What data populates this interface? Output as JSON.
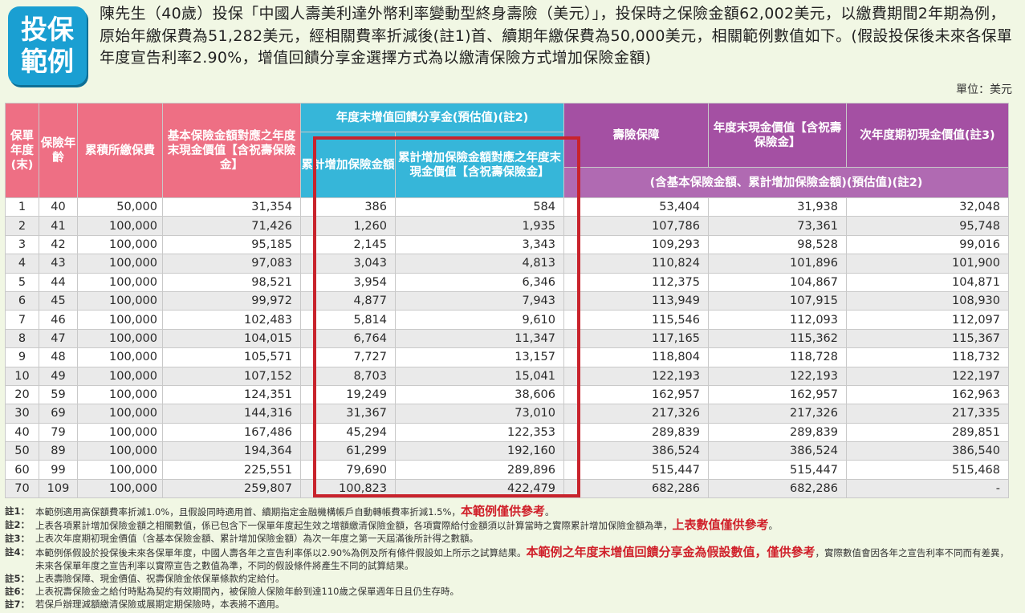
{
  "badge": {
    "line1": "投保",
    "line2": "範例"
  },
  "intro": "陳先生（40歲）投保「中國人壽美利達外幣利率變動型終身壽險（美元）」，投保時之保險金額62,002美元，以繳費期間2年期為例，原始年繳保費為51,282美元，經相關費率折減後(註1)首、續期年繳保費為50,000美元，相關範例數值如下。(假設投保後未來各保單年度宣告利率2.90%，增值回饋分享金選擇方式為以繳清保險方式增加保險金額)",
  "unit": "單位：美元",
  "headers": {
    "policy_year": "保單年度(末)",
    "age": "保險年齡",
    "cum_premium": "累積所繳保費",
    "base_cash_value": "基本保險金額對應之年度末現金價值【含祝壽保險金】",
    "dividend_group": "年度末增值回饋分享金(預估值)(註2)",
    "cum_added_amount": "累計增加保險金額",
    "cum_added_cash_value": "累計增加保險金額對應之年度末現金價值【含祝壽保險金】",
    "death_benefit": "壽險保障",
    "year_end_cash_value": "年度末現金價值【含祝壽保險金】",
    "next_year_cash_value": "次年度期初現金價值(註3)",
    "purple_sub": "(含基本保險金額、累計增加保險金額)(預估值)(註2)"
  },
  "rows": [
    [
      "1",
      "40",
      "50,000",
      "31,354",
      "386",
      "584",
      "53,404",
      "31,938",
      "32,048"
    ],
    [
      "2",
      "41",
      "100,000",
      "71,426",
      "1,260",
      "1,935",
      "107,786",
      "73,361",
      "95,748"
    ],
    [
      "3",
      "42",
      "100,000",
      "95,185",
      "2,145",
      "3,343",
      "109,293",
      "98,528",
      "99,016"
    ],
    [
      "4",
      "43",
      "100,000",
      "97,083",
      "3,043",
      "4,813",
      "110,824",
      "101,896",
      "101,900"
    ],
    [
      "5",
      "44",
      "100,000",
      "98,521",
      "3,954",
      "6,346",
      "112,375",
      "104,867",
      "104,871"
    ],
    [
      "6",
      "45",
      "100,000",
      "99,972",
      "4,877",
      "7,943",
      "113,949",
      "107,915",
      "108,930"
    ],
    [
      "7",
      "46",
      "100,000",
      "102,483",
      "5,814",
      "9,610",
      "115,546",
      "112,093",
      "112,097"
    ],
    [
      "8",
      "47",
      "100,000",
      "104,015",
      "6,764",
      "11,347",
      "117,165",
      "115,362",
      "115,367"
    ],
    [
      "9",
      "48",
      "100,000",
      "105,571",
      "7,727",
      "13,157",
      "118,804",
      "118,728",
      "118,732"
    ],
    [
      "10",
      "49",
      "100,000",
      "107,152",
      "8,703",
      "15,041",
      "122,193",
      "122,193",
      "122,197"
    ],
    [
      "20",
      "59",
      "100,000",
      "124,351",
      "19,249",
      "38,606",
      "162,957",
      "162,957",
      "162,963"
    ],
    [
      "30",
      "69",
      "100,000",
      "144,316",
      "31,367",
      "73,010",
      "217,326",
      "217,326",
      "217,335"
    ],
    [
      "40",
      "79",
      "100,000",
      "167,486",
      "45,294",
      "122,353",
      "289,839",
      "289,839",
      "289,851"
    ],
    [
      "50",
      "89",
      "100,000",
      "194,364",
      "61,299",
      "192,160",
      "386,524",
      "386,524",
      "386,540"
    ],
    [
      "60",
      "99",
      "100,000",
      "225,551",
      "79,690",
      "289,896",
      "515,447",
      "515,447",
      "515,468"
    ],
    [
      "70",
      "109",
      "100,000",
      "259,807",
      "100,823",
      "422,479",
      "682,286",
      "682,286",
      "-"
    ]
  ],
  "notes": [
    {
      "label": "註1：",
      "text": "本範例適用高保額費率折減1.0%，且假設同時適用首、續期指定金融機構帳戶自動轉帳費率折減1.5%，",
      "emph": "本範例僅供參考",
      "tail": "。"
    },
    {
      "label": "註2：",
      "text": "上表各項累計增加保險金額之相關數值，係已包含下一保單年度起生效之增額繳清保險金額，各項實際給付金額須以計算當時之實際累計增加保險金額為準，",
      "emph": "上表數值僅供參考",
      "tail": "。"
    },
    {
      "label": "註3：",
      "text": "上表次年度期初現金價值（含基本保險金額、累計增加保險金額）為次一年度之第一天屆滿後所計得之數額。",
      "emph": "",
      "tail": ""
    },
    {
      "label": "註4：",
      "text": "本範例係假設於投保後未來各保單年度，中國人壽各年之宣告利率係以2.90%為例及所有條件假設如上所示之試算結果。",
      "emph": "本範例之年度末增值回饋分享金為假設數值，僅供參考",
      "tail": "，實際數值會因各年之宣告利率不同而有差異，未來各保單年度之宣告利率以實際宣告之數值為準，不同的假設條件將產生不同的試算結果。"
    },
    {
      "label": "註5：",
      "text": "上表壽險保障、現金價值、祝壽保險金依保單條款約定給付。",
      "emph": "",
      "tail": ""
    },
    {
      "label": "註6：",
      "text": "上表祝壽保險金之給付時點為契約有效期間內，被保險人保險年齡到達110歲之保單週年日且仍生存時。",
      "emph": "",
      "tail": ""
    },
    {
      "label": "註7：",
      "text": "若保戶辦理減額繳清保險或展期定期保險時，本表將不適用。",
      "emph": "",
      "tail": ""
    }
  ],
  "colors": {
    "pink_header": "#ee6f84",
    "cyan_header": "#36b6d9",
    "purple_header": "#a450a3",
    "badge": "#1a9fd2",
    "highlight_box": "#c8232c",
    "emphasis_text": "#d0202a",
    "background": "#f1f7e4"
  }
}
